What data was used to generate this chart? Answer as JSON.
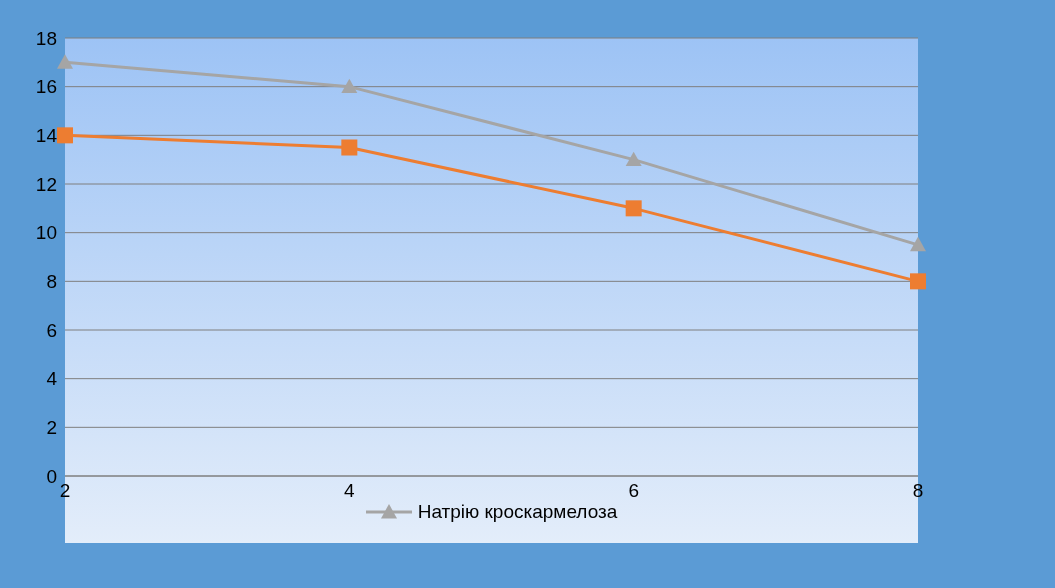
{
  "chart_data": {
    "type": "line",
    "categories": [
      "2",
      "4",
      "6",
      "8"
    ],
    "series": [
      {
        "color": "#ed7d31",
        "marker": "square",
        "values": [
          14,
          13.5,
          11,
          8
        ]
      },
      {
        "name": "Натрію кроскармелоза",
        "color": "#a5a5a5",
        "marker": "triangle",
        "values": [
          17,
          16,
          13,
          9.5
        ]
      }
    ],
    "ylim": [
      0,
      18
    ],
    "yticks": [
      0,
      2,
      4,
      6,
      8,
      10,
      12,
      14,
      16,
      18
    ],
    "grid": "y",
    "legend": "bottom",
    "line_style": "solid"
  }
}
